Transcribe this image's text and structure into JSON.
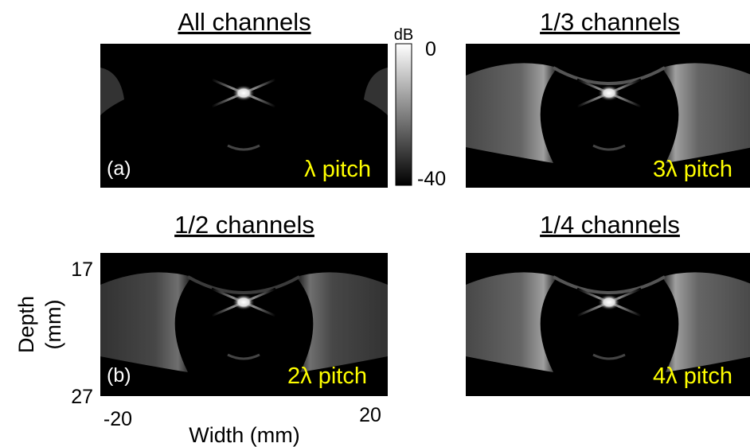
{
  "panels": [
    {
      "title": "All channels",
      "pitch": "λ pitch",
      "letter": "(a)"
    },
    {
      "title": "1/3 channels",
      "pitch": "3λ pitch"
    },
    {
      "title": "1/2 channels",
      "pitch": "2λ pitch",
      "letter": "(b)"
    },
    {
      "title": "1/4 channels",
      "pitch": "4λ pitch"
    }
  ],
  "colorbar": {
    "unit": "dB",
    "max": "0",
    "min": "-40"
  },
  "axes": {
    "y_label": "Depth",
    "y_unit": "(mm)",
    "y_ticks": [
      "17",
      "27"
    ],
    "x_label": "Width (mm)",
    "x_ticks": [
      "-20",
      "20"
    ]
  }
}
